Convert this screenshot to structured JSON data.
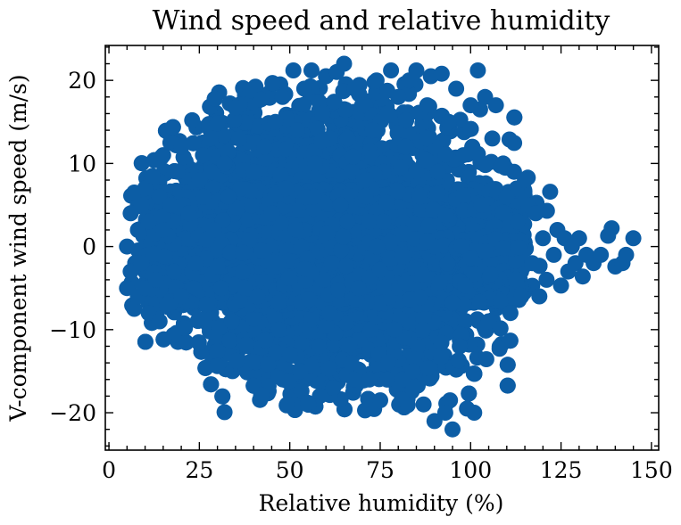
{
  "chart_data": {
    "type": "scatter",
    "title": "Wind speed and relative humidity",
    "xlabel": "Relative humidity (%)",
    "ylabel": "V-component wind speed (m/s)",
    "xlim": [
      -1,
      152
    ],
    "ylim": [
      -24.5,
      24.2
    ],
    "xticks": [
      0,
      25,
      50,
      75,
      100,
      125,
      150
    ],
    "yticks": [
      -20,
      -10,
      0,
      10,
      20
    ],
    "xtick_labels": [
      "0",
      "25",
      "50",
      "75",
      "100",
      "125",
      "150"
    ],
    "ytick_labels": [
      "−20",
      "−10",
      "0",
      "10",
      "20"
    ],
    "grid": false,
    "marker_color": "#0C5DA5",
    "point_count_note": "dense cloud",
    "series": [
      {
        "points": [
          [
            5,
            0
          ],
          [
            5,
            -5
          ],
          [
            6,
            4
          ],
          [
            6,
            -3
          ],
          [
            7,
            6.5
          ],
          [
            7,
            -7.5
          ],
          [
            8,
            2
          ],
          [
            8,
            -6
          ],
          [
            9,
            5
          ],
          [
            9,
            -2
          ],
          [
            10,
            7
          ],
          [
            10,
            -5
          ],
          [
            11,
            3
          ],
          [
            11,
            -8
          ],
          [
            12,
            8.5
          ],
          [
            13,
            -4
          ],
          [
            14,
            6
          ],
          [
            14,
            -9
          ],
          [
            15,
            2
          ],
          [
            15,
            11
          ],
          [
            16,
            -7
          ],
          [
            17,
            12.5
          ],
          [
            17,
            5
          ],
          [
            18,
            -3
          ],
          [
            19,
            9
          ],
          [
            20,
            12
          ],
          [
            20,
            -6
          ],
          [
            21,
            -9.8
          ],
          [
            22,
            4
          ],
          [
            23,
            15.2
          ],
          [
            24,
            -2
          ],
          [
            25,
            8
          ],
          [
            26,
            11
          ],
          [
            27,
            -7
          ],
          [
            28,
            13
          ],
          [
            29,
            2
          ],
          [
            30,
            14.8
          ],
          [
            30,
            -14.4
          ],
          [
            31,
            -5
          ],
          [
            32,
            10
          ],
          [
            33,
            6
          ],
          [
            34,
            -9
          ],
          [
            35,
            16.7
          ],
          [
            36,
            13
          ],
          [
            37,
            -3
          ],
          [
            38,
            -11.8
          ],
          [
            39,
            18.8
          ],
          [
            40,
            9
          ],
          [
            41,
            -6
          ],
          [
            42,
            17.7
          ],
          [
            43,
            12
          ],
          [
            44,
            -14.2
          ],
          [
            45,
            4
          ],
          [
            46,
            15
          ],
          [
            47,
            -10
          ],
          [
            48,
            18
          ],
          [
            49,
            7
          ],
          [
            50,
            -13
          ],
          [
            51,
            21.2
          ],
          [
            52,
            14
          ],
          [
            53,
            -15
          ],
          [
            54,
            19
          ],
          [
            55,
            -18.8
          ],
          [
            56,
            21.2
          ],
          [
            57,
            10
          ],
          [
            58,
            -12
          ],
          [
            59,
            16
          ],
          [
            60,
            20.5
          ],
          [
            61,
            -8
          ],
          [
            62,
            -17
          ],
          [
            63,
            21
          ],
          [
            64,
            5
          ],
          [
            65,
            22
          ],
          [
            66,
            13
          ],
          [
            67,
            -14
          ],
          [
            68,
            19
          ],
          [
            69,
            -5
          ],
          [
            70,
            17
          ],
          [
            71,
            8
          ],
          [
            72,
            -16
          ],
          [
            73,
            14
          ],
          [
            74,
            20
          ],
          [
            75,
            -18.5
          ],
          [
            76,
            3
          ],
          [
            77,
            16
          ],
          [
            78,
            21.2
          ],
          [
            79,
            -10
          ],
          [
            80,
            18
          ],
          [
            81,
            -18.4
          ],
          [
            82,
            12
          ],
          [
            83,
            20
          ],
          [
            84,
            -15
          ],
          [
            85,
            21.2
          ],
          [
            86,
            6
          ],
          [
            87,
            -19
          ],
          [
            88,
            17
          ],
          [
            89,
            20.5
          ],
          [
            90,
            -21
          ],
          [
            91,
            9
          ],
          [
            92,
            20.8
          ],
          [
            93,
            -20
          ],
          [
            94,
            15
          ],
          [
            95,
            -22
          ],
          [
            96,
            19
          ],
          [
            97,
            -12
          ],
          [
            98,
            11
          ],
          [
            99,
            -19.5
          ],
          [
            100,
            17
          ],
          [
            101,
            -20
          ],
          [
            102,
            21.2
          ],
          [
            103,
            5
          ],
          [
            104,
            18
          ],
          [
            105,
            -9
          ],
          [
            106,
            13
          ],
          [
            107,
            17
          ],
          [
            108,
            -12.3
          ],
          [
            109,
            10
          ],
          [
            110,
            6
          ],
          [
            111,
            -8
          ],
          [
            112,
            9
          ],
          [
            113,
            3
          ],
          [
            114,
            -6
          ],
          [
            115,
            8
          ],
          [
            116,
            5
          ],
          [
            117,
            -2
          ],
          [
            118,
            4
          ],
          [
            119,
            -6
          ],
          [
            120,
            1
          ],
          [
            121,
            -4
          ],
          [
            122,
            6.6
          ],
          [
            123,
            -1
          ],
          [
            124,
            2
          ],
          [
            125,
            -4.7
          ],
          [
            126,
            1
          ],
          [
            127,
            -3
          ],
          [
            128,
            0
          ],
          [
            129,
            -2
          ],
          [
            130,
            1
          ],
          [
            131,
            -3.6
          ],
          [
            132,
            -1
          ],
          [
            134,
            -2
          ],
          [
            136,
            -1
          ],
          [
            138,
            1.3
          ],
          [
            139,
            2.2
          ],
          [
            140,
            -2.4
          ],
          [
            142,
            -2
          ],
          [
            143,
            -1
          ],
          [
            145,
            1
          ]
        ]
      }
    ]
  }
}
